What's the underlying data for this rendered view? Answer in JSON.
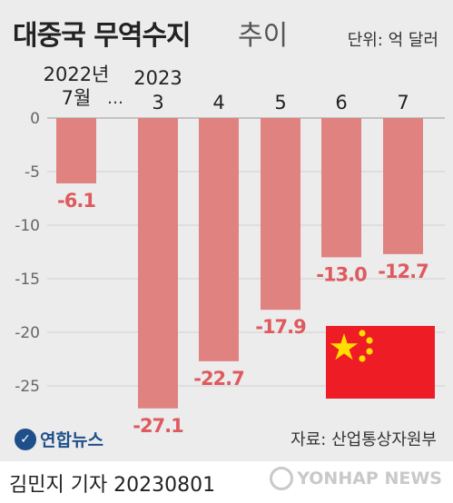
{
  "title": {
    "bold": "대중국 무역수지",
    "light": "추이"
  },
  "unit": "단위: 억 달러",
  "x_labels": {
    "year0": "2022년",
    "month0": "7월",
    "ellipsis": "…",
    "year1": "2023"
  },
  "chart_data": {
    "type": "bar",
    "categories": [
      "7월",
      "3",
      "4",
      "5",
      "6",
      "7"
    ],
    "values": [
      -6.1,
      -27.1,
      -22.7,
      -17.9,
      -13.0,
      -12.7
    ],
    "value_labels": [
      "-6.1",
      "-27.1",
      "-22.7",
      "-17.9",
      "-13.0",
      "-12.7"
    ],
    "title": "대중국 무역수지 추이",
    "ylabel": "",
    "xlabel": "",
    "ylim": [
      -29,
      0
    ],
    "yticks": [
      0,
      -5,
      -10,
      -15,
      -20,
      -25
    ],
    "ytick_labels": [
      "0",
      "-5",
      "-10",
      "-15",
      "-20",
      "-25"
    ],
    "grid": true,
    "colors": {
      "bar": "#e08280",
      "label": "#de5a5f",
      "grid": "#cfcfcf"
    }
  },
  "source": "자료: 산업통상자원부",
  "logo": "연합뉴스",
  "reporter": "김민지 기자  20230801",
  "watermark": "YONHAP NEWS",
  "flag": {
    "name": "china-flag",
    "colors": {
      "red": "#ee1c25",
      "star": "#ffde00"
    }
  }
}
